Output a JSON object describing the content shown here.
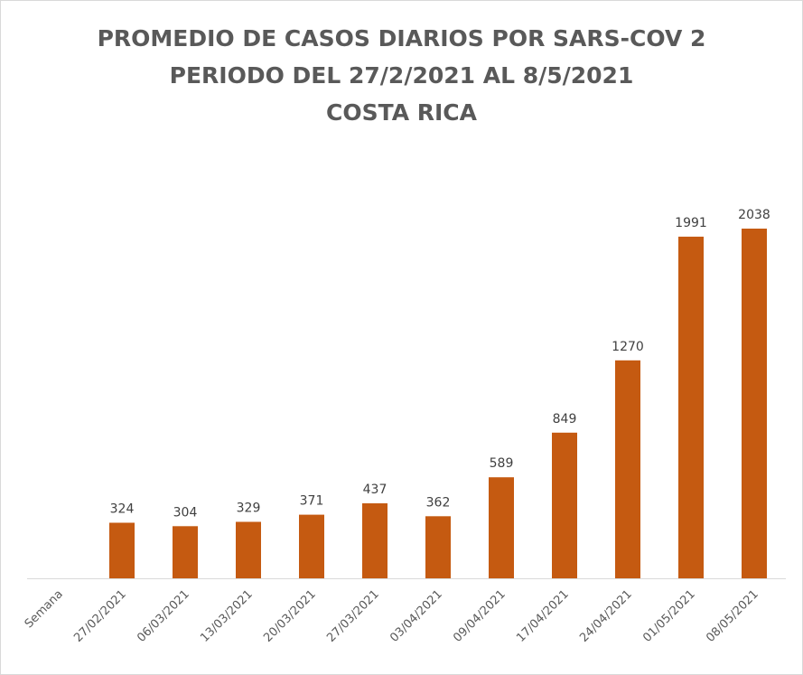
{
  "title_lines": [
    "PROMEDIO DE CASOS DIARIOS POR SARS-COV 2",
    "PERIODO DEL 27/2/2021 AL 8/5/2021",
    "COSTA RICA"
  ],
  "colors": {
    "bar": "#c55a11",
    "title": "#595959",
    "label": "#404040",
    "axis": "#d9d9d9"
  },
  "chart_data": {
    "type": "bar",
    "title": "PROMEDIO DE CASOS DIARIOS POR SARS-COV 2 PERIODO DEL 27/2/2021 AL 8/5/2021 COSTA RICA",
    "categories": [
      "Semana",
      "27/02/2021",
      "06/03/2021",
      "13/03/2021",
      "20/03/2021",
      "27/03/2021",
      "03/04/2021",
      "09/04/2021",
      "17/04/2021",
      "24/04/2021",
      "01/05/2021",
      "08/05/2021"
    ],
    "values": [
      null,
      324,
      304,
      329,
      371,
      437,
      362,
      589,
      849,
      1270,
      1991,
      2038
    ],
    "data_labels": [
      "",
      "324",
      "304",
      "329",
      "371",
      "437",
      "362",
      "589",
      "849",
      "1270",
      "1991",
      "2038"
    ],
    "xlabel": "",
    "ylabel": "",
    "ylim": [
      0,
      2200
    ],
    "grid": false,
    "legend": "none",
    "y_axis_visible": false
  }
}
